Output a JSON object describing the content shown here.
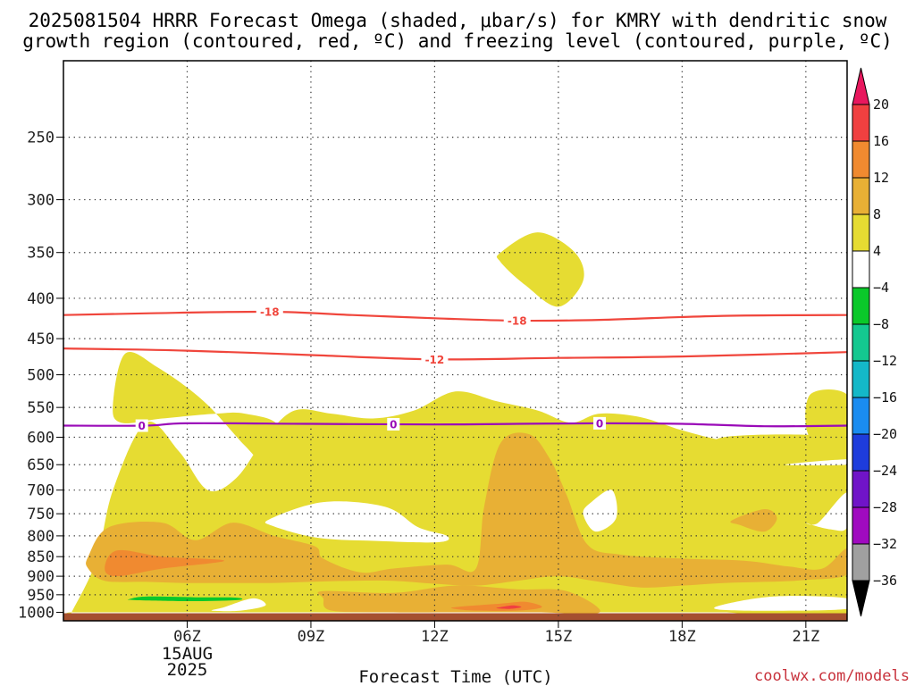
{
  "title_line1": "2025081504 HRRR Forecast Omega (shaded, μbar/s) for KMRY with dendritic snow",
  "title_line2": "growth region (contoured, red, ºC) and freezing level (contoured, purple, ºC)",
  "credit": "coolwx.com/models",
  "chart_data": {
    "type": "time-height cross section",
    "title": "2025081504 HRRR Forecast Omega (shaded, μbar/s) for KMRY with dendritic snow growth region (contoured, red, ºC) and freezing level (contoured, purple, ºC)",
    "xlabel": "Forecast Time (UTC)",
    "ylabel": "",
    "date_label": [
      "15AUG",
      "2025"
    ],
    "x_hours": [
      3,
      22
    ],
    "x_ticks": [
      {
        "hour": 6,
        "label": "06Z"
      },
      {
        "hour": 9,
        "label": "09Z"
      },
      {
        "hour": 12,
        "label": "12Z"
      },
      {
        "hour": 15,
        "label": "15Z"
      },
      {
        "hour": 18,
        "label": "18Z"
      },
      {
        "hour": 21,
        "label": "21Z"
      }
    ],
    "y_ticks": [
      250,
      300,
      350,
      400,
      450,
      500,
      550,
      600,
      650,
      700,
      750,
      800,
      850,
      900,
      950,
      1000
    ],
    "ylim_hPa": [
      200,
      1025
    ],
    "y_scale": "log",
    "grid": "dotted",
    "colorbar": {
      "labels": [
        "20",
        "16",
        "12",
        "8",
        "4",
        "-4",
        "-8",
        "-12",
        "-16",
        "-20",
        "-24",
        "-28",
        "-32",
        "-36"
      ],
      "colors": [
        "#e8185e",
        "#f04040",
        "#f08a30",
        "#e8b035",
        "#e6dc32",
        "#ffffff",
        "#0ac82a",
        "#14c890",
        "#14b8c8",
        "#1a8cf0",
        "#1e3cdc",
        "#7014c8",
        "#a00ac0",
        "#a0a0a0",
        "#000000"
      ]
    },
    "contours": {
      "dgz_red": [
        {
          "level": -18,
          "label": "-18",
          "hours": [
            3,
            5,
            8,
            10,
            12,
            14,
            16,
            19,
            22
          ],
          "hPa": [
            420,
            418,
            416,
            420,
            424,
            427,
            426,
            421,
            420
          ],
          "label_hours": [
            8,
            14
          ]
        },
        {
          "level": -12,
          "label": "-12",
          "hours": [
            3,
            6,
            9,
            12,
            15,
            18,
            22
          ],
          "hPa": [
            463,
            466,
            472,
            478,
            476,
            474,
            468
          ],
          "label_hours": [
            12
          ]
        }
      ],
      "freezing_level_purple": [
        {
          "level": 0,
          "label": "0",
          "hours": [
            3,
            5,
            6,
            9,
            12,
            14,
            16,
            18,
            20,
            22
          ],
          "hPa": [
            580,
            580,
            576,
            577,
            578,
            577,
            576,
            577,
            581,
            580
          ],
          "label_hours": [
            4.9,
            11,
            16
          ]
        }
      ]
    },
    "omega_fields": [
      {
        "value_range": "4 to 8",
        "color": "#e6dc32",
        "hours": [
          3.2,
          3.8,
          4.2,
          5.0,
          5.8,
          6.5,
          7.2,
          7.9,
          8.6,
          9.5,
          10.5,
          11.5,
          12.5,
          13.5,
          14.5,
          15.3,
          16.0,
          17.0,
          18.0,
          19.0,
          20.0,
          21.0,
          22.0,
          22.0,
          19.0,
          16.0,
          13.0,
          10.0,
          7.0,
          5.0,
          3.2
        ],
        "hPa": [
          1000,
          860,
          700,
          575,
          625,
          700,
          675,
          600,
          555,
          560,
          568,
          555,
          525,
          540,
          555,
          575,
          560,
          566,
          588,
          606,
          615,
          610,
          600,
          1000,
          1000,
          1000,
          1000,
          1000,
          1000,
          1000,
          1000
        ]
      },
      {
        "value_range": "4 to 8",
        "color": "#e6dc32",
        "hours": [
          4.2,
          4.5,
          5.3,
          6.4,
          7.4,
          7.9,
          8.2,
          7.4,
          6.7,
          5.4,
          4.4
        ],
        "hPa": [
          545,
          470,
          490,
          540,
          615,
          645,
          580,
          560,
          560,
          568,
          575
        ]
      },
      {
        "value_range": "4 to 8",
        "color": "#e6dc32",
        "hours": [
          13.6,
          14.5,
          15.4,
          15.6,
          15.0,
          14.2,
          13.6
        ],
        "hPa": [
          350,
          330,
          350,
          380,
          410,
          385,
          360
        ]
      },
      {
        "value_range": "4 to 8",
        "color": "#e6dc32",
        "hours": [
          21.1,
          22.0,
          22.0,
          21.1
        ],
        "hPa": [
          530,
          530,
          600,
          600
        ]
      },
      {
        "value_range": "4 to 8",
        "color": "#e6dc32",
        "hours": [
          19.0,
          22.0,
          22.0,
          19.0
        ],
        "hPa": [
          600,
          600,
          640,
          640
        ]
      },
      {
        "value_range": "-4 to 4",
        "color": "#ffffff",
        "hours": [
          8.0,
          9.3,
          10.8,
          11.6,
          12.3,
          12.1,
          10.6,
          9.2,
          8.1
        ],
        "hPa": [
          762,
          725,
          735,
          780,
          800,
          815,
          812,
          805,
          778
        ]
      },
      {
        "value_range": "-4 to 4",
        "color": "#ffffff",
        "hours": [
          15.8,
          16.3,
          16.4,
          15.9,
          15.6
        ],
        "hPa": [
          725,
          700,
          760,
          790,
          750
        ]
      },
      {
        "value_range": "-4 to 4",
        "color": "#ffffff",
        "hours": [
          21.3,
          22.0,
          22.0,
          21.6,
          21.0
        ],
        "hPa": [
          770,
          705,
          780,
          785,
          770
        ]
      },
      {
        "value_range": "-4 to 4",
        "color": "#ffffff",
        "hours": [
          20.5,
          22.0,
          22.0
        ],
        "hPa": [
          650,
          650,
          640
        ]
      },
      {
        "value_range": "-4 to 4",
        "color": "#ffffff",
        "hours": [
          18.8,
          20.2,
          22.0,
          22.0,
          19.5
        ],
        "hPa": [
          985,
          955,
          960,
          990,
          995
        ]
      },
      {
        "value_range": "-4 to 4",
        "color": "#ffffff",
        "hours": [
          6.9,
          7.6,
          7.9,
          7.3,
          6.6
        ],
        "hPa": [
          985,
          960,
          980,
          995,
          995
        ]
      },
      {
        "value_range": "8 to 12",
        "color": "#e8b035",
        "hours": [
          3.6,
          4.1,
          5.4,
          6.2,
          7.1,
          8.1,
          9.1,
          9.3,
          10.2,
          11.0,
          12.3,
          13.0,
          13.2,
          13.6,
          14.3,
          14.8,
          15.2,
          15.7,
          16.5,
          18.0,
          19.5,
          20.6,
          21.4,
          22.0,
          22.0,
          21.0,
          20.0,
          19.0,
          18.0,
          17.0,
          16.0,
          15.0,
          14.0,
          13.0,
          12.0,
          11.0,
          10.0,
          9.0,
          8.0,
          7.0,
          6.0,
          5.0,
          4.0,
          3.6
        ],
        "hPa": [
          850,
          780,
          770,
          810,
          770,
          800,
          825,
          855,
          890,
          880,
          870,
          880,
          735,
          610,
          595,
          640,
          710,
          820,
          845,
          855,
          860,
          875,
          880,
          830,
          895,
          910,
          915,
          918,
          925,
          930,
          915,
          900,
          912,
          925,
          920,
          912,
          912,
          915,
          918,
          918,
          918,
          915,
          912,
          880
        ]
      },
      {
        "value_range": "8 to 12",
        "color": "#e8b035",
        "hours": [
          19.2,
          20.0,
          20.3,
          20.0,
          19.4
        ],
        "hPa": [
          765,
          740,
          760,
          790,
          775
        ]
      },
      {
        "value_range": "8 to 12",
        "color": "#e8b035",
        "hours": [
          9.3,
          11.0,
          12.5,
          14.0,
          15.2,
          16.0,
          14.5,
          13.0,
          11.0,
          9.5,
          9.3
        ],
        "hPa": [
          940,
          945,
          925,
          935,
          940,
          1000,
          1000,
          1000,
          1000,
          995,
          960
        ]
      },
      {
        "value_range": "12 to 16",
        "color": "#f08a30",
        "hours": [
          4.0,
          4.3,
          5.4,
          6.9,
          5.4,
          4.3
        ],
        "hPa": [
          880,
          835,
          850,
          860,
          880,
          900
        ]
      },
      {
        "value_range": "12 to 16",
        "color": "#f08a30",
        "hours": [
          12.5,
          13.6,
          14.2,
          14.6,
          14.0,
          13.0,
          12.5
        ],
        "hPa": [
          985,
          975,
          970,
          985,
          995,
          995,
          990
        ]
      },
      {
        "value_range": "16 to 20",
        "color": "#f04040",
        "hours": [
          13.6,
          13.9,
          14.1,
          13.8,
          13.5
        ],
        "hPa": [
          985,
          980,
          985,
          990,
          988
        ]
      },
      {
        "value_range": "-8 to -4",
        "color": "#0ac82a",
        "hours": [
          4.6,
          5.0,
          6.2,
          7.2,
          7.2,
          6.0,
          5.0,
          4.6
        ],
        "hPa": [
          962,
          955,
          957,
          958,
          965,
          968,
          966,
          964
        ]
      }
    ],
    "terrain_color": "#a55030"
  }
}
